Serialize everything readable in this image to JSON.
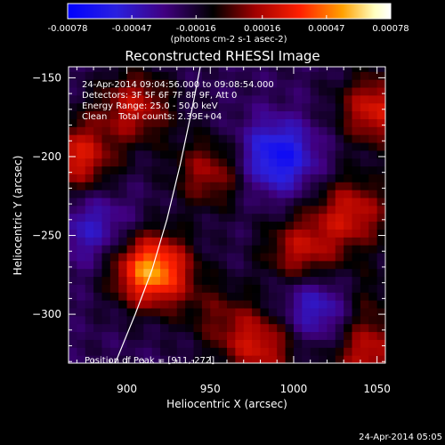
{
  "chart_data": {
    "type": "heatmap",
    "title": "Reconstructed RHESSI Image",
    "xlabel": "Heliocentric X (arcsec)",
    "ylabel": "Heliocentric Y (arcsec)",
    "xlim": [
      865,
      1055
    ],
    "ylim": [
      -331,
      -143
    ],
    "x_ticks": [
      900,
      950,
      1000,
      1050
    ],
    "y_ticks": [
      -150,
      -200,
      -250,
      -300
    ],
    "colorbar": {
      "ticks": [
        "-0.00078",
        "-0.00047",
        "-0.00016",
        "0.00016",
        "0.00047",
        "0.00078"
      ],
      "range": [
        -0.00078,
        0.00078
      ],
      "units_label": "(photons cm-2 s-1 asec-2)",
      "colors": [
        "#0000ff",
        "#400080",
        "#000000",
        "#a00000",
        "#ff2000",
        "#ffa000",
        "#ffffc0",
        "#ffffff"
      ]
    },
    "info_lines": [
      "24-Apr-2014 09:04:56.000 to 09:08:54.000",
      "Detectors: 3F 5F 6F 7F 8F 9F, Att 0",
      "Energy Range: 25.0 - 50.0 keV",
      "Clean    Total counts: 2.39E+04"
    ],
    "peak_label": "Position of Peak = [911,-272]",
    "peak": [
      911,
      -272
    ],
    "limb_curve": [
      [
        893,
        -331
      ],
      [
        905,
        -300
      ],
      [
        915,
        -272
      ],
      [
        924,
        -240
      ],
      [
        932,
        -205
      ],
      [
        939,
        -170
      ],
      [
        944,
        -143
      ]
    ],
    "intensity_blobs": [
      {
        "x": 915,
        "y": -272,
        "v": 0.00078
      },
      {
        "x": 870,
        "y": -200,
        "v": 0.00047
      },
      {
        "x": 905,
        "y": -168,
        "v": 0.0004
      },
      {
        "x": 950,
        "y": -210,
        "v": 0.00035
      },
      {
        "x": 955,
        "y": -300,
        "v": 0.0002
      },
      {
        "x": 1005,
        "y": -260,
        "v": 0.0004
      },
      {
        "x": 1050,
        "y": -170,
        "v": 0.00047
      },
      {
        "x": 1035,
        "y": -235,
        "v": 0.00042
      },
      {
        "x": 980,
        "y": -320,
        "v": 0.00042
      },
      {
        "x": 1045,
        "y": -325,
        "v": 0.0004
      },
      {
        "x": 1040,
        "y": -290,
        "v": 0.00018
      },
      {
        "x": 990,
        "y": -200,
        "v": -0.00047
      },
      {
        "x": 1015,
        "y": -295,
        "v": -0.00035
      },
      {
        "x": 880,
        "y": -245,
        "v": -0.00025
      }
    ]
  },
  "footer_timestamp": "24-Apr-2014 05:05"
}
